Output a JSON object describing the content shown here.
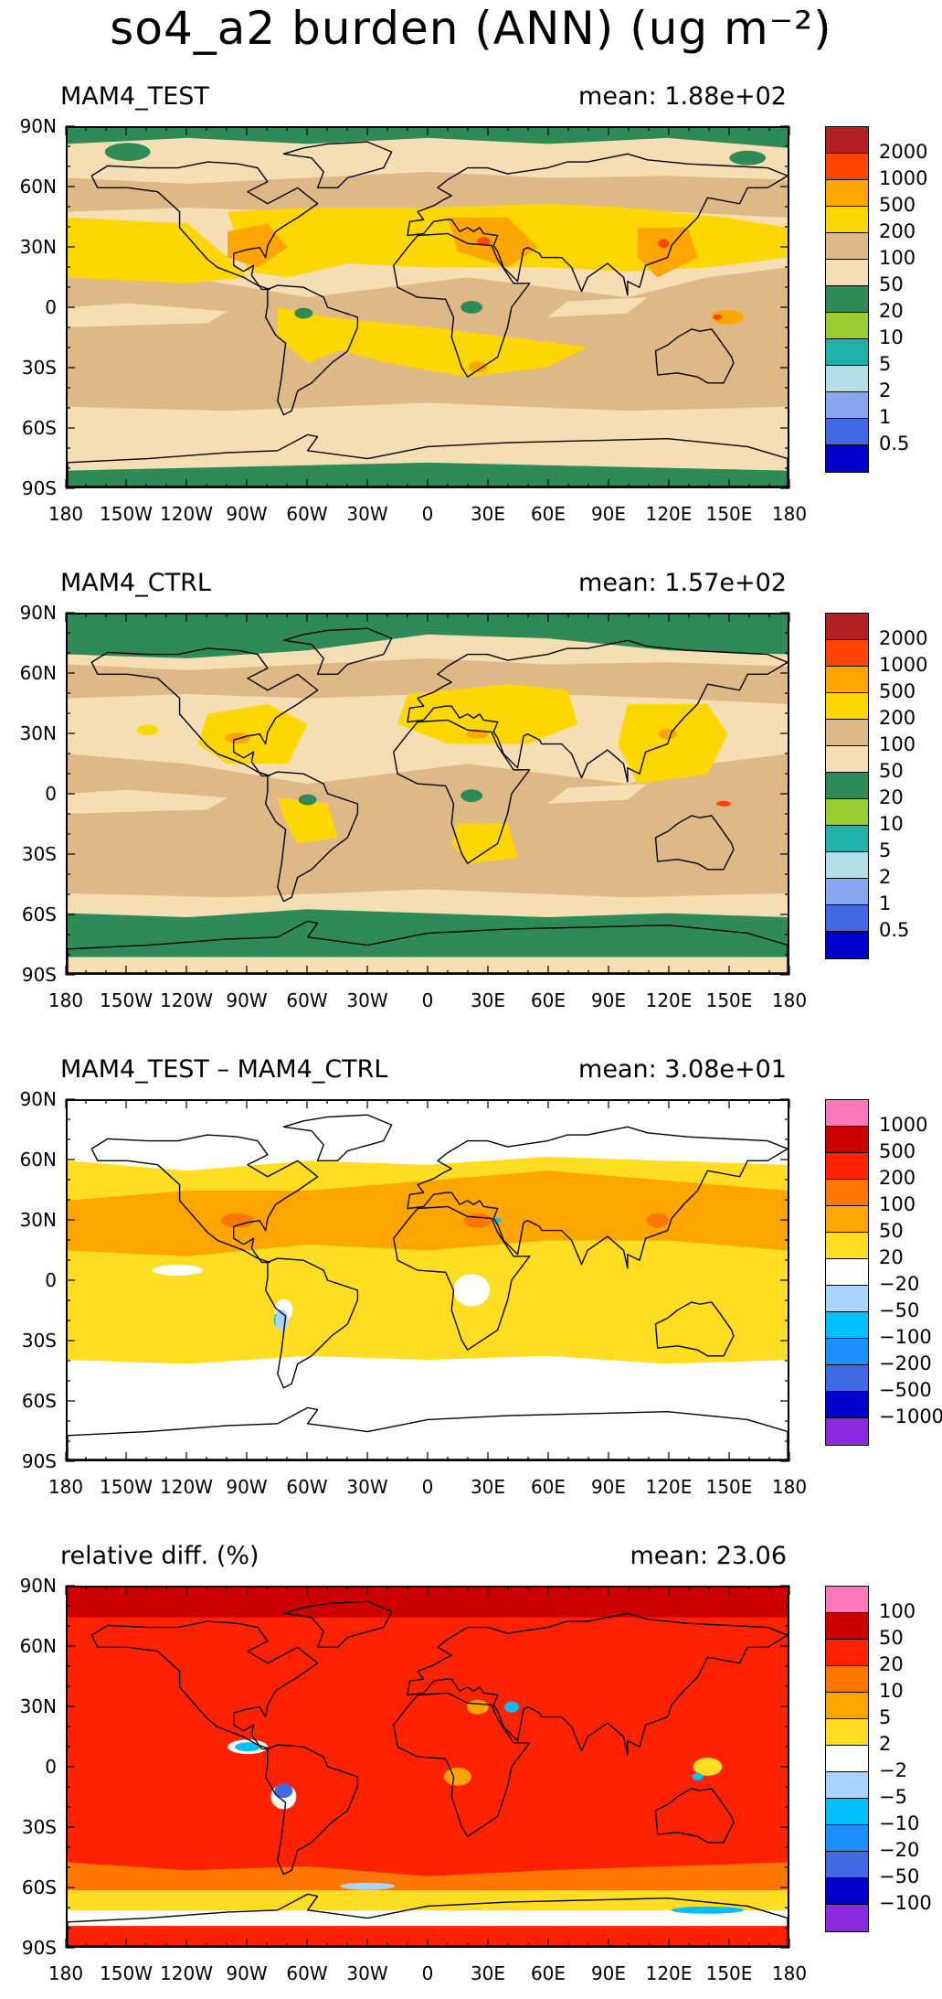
{
  "title": "so4_a2 burden (ANN) (ug m⁻²)",
  "lat_labels": [
    "90N",
    "60N",
    "30N",
    "0",
    "30S",
    "60S",
    "90S"
  ],
  "lon_labels": [
    "180",
    "150W",
    "120W",
    "90W",
    "60W",
    "30W",
    "0",
    "30E",
    "60E",
    "90E",
    "120E",
    "150E",
    "180"
  ],
  "chart_data": [
    {
      "type": "heatmap",
      "panel_title": "MAM4_TEST",
      "mean_label": "mean: 1.88e+02",
      "xlim": [
        -180,
        180
      ],
      "ylim": [
        -90,
        90
      ],
      "levels": [
        "2000",
        "1000",
        "500",
        "200",
        "100",
        "50",
        "20",
        "10",
        "5",
        "2",
        "1",
        "0.5"
      ],
      "colors": [
        "#b22222",
        "#ff4500",
        "#ffa500",
        "#ffd700",
        "#deb887",
        "#f5deb3",
        "#2e8b57",
        "#9acd32",
        "#20b2aa",
        "#b0e0e6",
        "#87a8f0",
        "#4169e1",
        "#0000cd"
      ]
    },
    {
      "type": "heatmap",
      "panel_title": "MAM4_CTRL",
      "mean_label": "mean: 1.57e+02",
      "xlim": [
        -180,
        180
      ],
      "ylim": [
        -90,
        90
      ],
      "levels": [
        "2000",
        "1000",
        "500",
        "200",
        "100",
        "50",
        "20",
        "10",
        "5",
        "2",
        "1",
        "0.5"
      ],
      "colors": [
        "#b22222",
        "#ff4500",
        "#ffa500",
        "#ffd700",
        "#deb887",
        "#f5deb3",
        "#2e8b57",
        "#9acd32",
        "#20b2aa",
        "#b0e0e6",
        "#87a8f0",
        "#4169e1",
        "#0000cd"
      ]
    },
    {
      "type": "heatmap",
      "panel_title": "MAM4_TEST – MAM4_CTRL",
      "mean_label": "mean: 3.08e+01",
      "xlim": [
        -180,
        180
      ],
      "ylim": [
        -90,
        90
      ],
      "levels": [
        "1000",
        "500",
        "200",
        "100",
        "50",
        "20",
        "−20",
        "−50",
        "−100",
        "−200",
        "−500",
        "−1000"
      ],
      "colors": [
        "#ff77bb",
        "#cc0000",
        "#ff2200",
        "#ff7700",
        "#ffa500",
        "#ffdd22",
        "#ffffff",
        "#a9d4ff",
        "#00bfff",
        "#1e90ff",
        "#4169e1",
        "#0000cd",
        "#8a2be2"
      ]
    },
    {
      "type": "heatmap",
      "panel_title": "relative diff. (%)",
      "mean_label": "mean: 23.06",
      "xlim": [
        -180,
        180
      ],
      "ylim": [
        -90,
        90
      ],
      "levels": [
        "100",
        "50",
        "20",
        "10",
        "5",
        "2",
        "−2",
        "−5",
        "−10",
        "−20",
        "−50",
        "−100"
      ],
      "colors": [
        "#ff77bb",
        "#cc0000",
        "#ff2200",
        "#ff7700",
        "#ffa500",
        "#ffdd22",
        "#ffffff",
        "#a9d4ff",
        "#00bfff",
        "#1e90ff",
        "#4169e1",
        "#0000cd",
        "#8a2be2"
      ]
    }
  ]
}
